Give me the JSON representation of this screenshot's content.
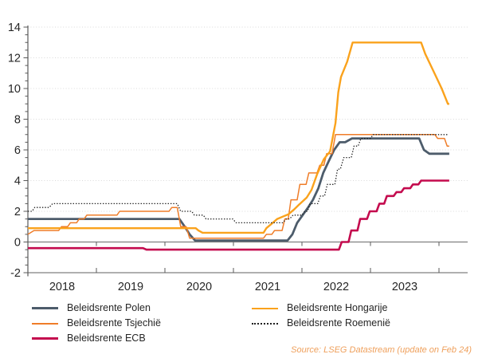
{
  "chart_data": {
    "type": "line",
    "title": "",
    "x_axis": {
      "range": [
        2018,
        2024.42
      ],
      "year_ticks": [
        2019,
        2020,
        2021,
        2022,
        2023,
        2024
      ],
      "labels": [
        "2018",
        "2019",
        "2020",
        "2021",
        "2022",
        "2023"
      ]
    },
    "y_axis": {
      "min": -2,
      "max": 14,
      "label_step": 2,
      "minor_tick_step": 0.5,
      "labels": [
        "-2",
        "0",
        "2",
        "4",
        "6",
        "8",
        "10",
        "12",
        "14"
      ]
    },
    "grid": "horizontal-dotted",
    "zero_line": true,
    "legend": {
      "position": "bottom",
      "columns": [
        [
          "polen",
          "tsjechie",
          "ecb"
        ],
        [
          "hongarije",
          "roemenie"
        ]
      ]
    },
    "style": {
      "grid_color": "#D9D9D9",
      "axis_color": "#595959",
      "zero_line_color": "#808080",
      "text_color": "#262626",
      "source_color": "#EFA05C",
      "background": "#FFFFFF"
    },
    "series": [
      {
        "id": "polen",
        "label": "Beleidsrente Polen",
        "color": "#4D5C6B",
        "width": 2.8,
        "dash": "solid",
        "points": [
          [
            2018.0,
            1.5
          ],
          [
            2020.21,
            1.5
          ],
          [
            2020.29,
            1.0
          ],
          [
            2020.36,
            0.5
          ],
          [
            2020.44,
            0.1
          ],
          [
            2021.79,
            0.1
          ],
          [
            2021.86,
            0.5
          ],
          [
            2021.93,
            1.25
          ],
          [
            2022.01,
            1.75
          ],
          [
            2022.09,
            2.25
          ],
          [
            2022.16,
            2.75
          ],
          [
            2022.24,
            3.5
          ],
          [
            2022.31,
            4.5
          ],
          [
            2022.39,
            5.25
          ],
          [
            2022.47,
            6.0
          ],
          [
            2022.55,
            6.5
          ],
          [
            2022.63,
            6.5
          ],
          [
            2022.73,
            6.75
          ],
          [
            2023.71,
            6.75
          ],
          [
            2023.78,
            6.0
          ],
          [
            2023.86,
            5.75
          ],
          [
            2024.15,
            5.75
          ]
        ]
      },
      {
        "id": "tsjechie",
        "label": "Beleidsrente Tsjechië",
        "color": "#EF7D29",
        "width": 1.5,
        "dash": "solid",
        "points": [
          [
            2018.0,
            0.5
          ],
          [
            2018.09,
            0.75
          ],
          [
            2018.45,
            0.75
          ],
          [
            2018.49,
            1.0
          ],
          [
            2018.58,
            1.0
          ],
          [
            2018.62,
            1.25
          ],
          [
            2018.71,
            1.25
          ],
          [
            2018.75,
            1.5
          ],
          [
            2018.82,
            1.5
          ],
          [
            2018.86,
            1.75
          ],
          [
            2019.3,
            1.75
          ],
          [
            2019.34,
            2.0
          ],
          [
            2020.06,
            2.0
          ],
          [
            2020.1,
            2.25
          ],
          [
            2020.18,
            2.25
          ],
          [
            2020.23,
            1.0
          ],
          [
            2020.31,
            1.0
          ],
          [
            2020.36,
            0.25
          ],
          [
            2021.44,
            0.25
          ],
          [
            2021.48,
            0.5
          ],
          [
            2021.56,
            0.5
          ],
          [
            2021.6,
            0.75
          ],
          [
            2021.71,
            0.75
          ],
          [
            2021.75,
            1.5
          ],
          [
            2021.8,
            1.5
          ],
          [
            2021.84,
            2.75
          ],
          [
            2021.93,
            2.75
          ],
          [
            2021.97,
            3.75
          ],
          [
            2022.06,
            3.75
          ],
          [
            2022.1,
            4.5
          ],
          [
            2022.22,
            4.5
          ],
          [
            2022.26,
            5.0
          ],
          [
            2022.32,
            5.0
          ],
          [
            2022.36,
            5.75
          ],
          [
            2022.44,
            5.75
          ],
          [
            2022.49,
            7.0
          ],
          [
            2023.94,
            7.0
          ],
          [
            2023.98,
            6.75
          ],
          [
            2024.08,
            6.75
          ],
          [
            2024.12,
            6.25
          ],
          [
            2024.15,
            6.25
          ]
        ]
      },
      {
        "id": "ecb",
        "label": "Beleidsrente ECB",
        "color": "#C40B4E",
        "width": 2.6,
        "dash": "solid",
        "points": [
          [
            2018.0,
            -0.4
          ],
          [
            2019.68,
            -0.4
          ],
          [
            2019.73,
            -0.5
          ],
          [
            2022.54,
            -0.5
          ],
          [
            2022.58,
            0.0
          ],
          [
            2022.68,
            0.0
          ],
          [
            2022.72,
            0.75
          ],
          [
            2022.81,
            0.75
          ],
          [
            2022.85,
            1.5
          ],
          [
            2022.95,
            1.5
          ],
          [
            2022.99,
            2.0
          ],
          [
            2023.09,
            2.0
          ],
          [
            2023.13,
            2.5
          ],
          [
            2023.2,
            2.5
          ],
          [
            2023.24,
            3.0
          ],
          [
            2023.34,
            3.0
          ],
          [
            2023.38,
            3.25
          ],
          [
            2023.45,
            3.25
          ],
          [
            2023.49,
            3.5
          ],
          [
            2023.58,
            3.5
          ],
          [
            2023.62,
            3.75
          ],
          [
            2023.7,
            3.75
          ],
          [
            2023.74,
            4.0
          ],
          [
            2024.15,
            4.0
          ]
        ]
      },
      {
        "id": "hongarije",
        "label": "Beleidsrente Hongarije",
        "color": "#FAA21C",
        "width": 2.4,
        "dash": "solid",
        "points": [
          [
            2018.0,
            0.9
          ],
          [
            2020.45,
            0.9
          ],
          [
            2020.49,
            0.75
          ],
          [
            2020.55,
            0.6
          ],
          [
            2021.44,
            0.6
          ],
          [
            2021.48,
            0.9
          ],
          [
            2021.56,
            1.2
          ],
          [
            2021.64,
            1.5
          ],
          [
            2021.72,
            1.65
          ],
          [
            2021.8,
            1.8
          ],
          [
            2021.88,
            2.1
          ],
          [
            2021.95,
            2.4
          ],
          [
            2022.07,
            2.9
          ],
          [
            2022.14,
            3.4
          ],
          [
            2022.22,
            4.4
          ],
          [
            2022.32,
            5.4
          ],
          [
            2022.41,
            5.9
          ],
          [
            2022.49,
            7.75
          ],
          [
            2022.53,
            9.75
          ],
          [
            2022.57,
            10.75
          ],
          [
            2022.66,
            11.75
          ],
          [
            2022.74,
            13.0
          ],
          [
            2023.74,
            13.0
          ],
          [
            2023.8,
            12.25
          ],
          [
            2023.88,
            11.5
          ],
          [
            2023.96,
            10.75
          ],
          [
            2024.04,
            10.0
          ],
          [
            2024.13,
            9.0
          ],
          [
            2024.15,
            9.0
          ]
        ]
      },
      {
        "id": "roemenie",
        "label": "Beleidsrente Roemenië",
        "color": "#202020",
        "width": 1.3,
        "dash": "dotted",
        "points": [
          [
            2018.0,
            2.0
          ],
          [
            2018.06,
            2.0
          ],
          [
            2018.1,
            2.25
          ],
          [
            2018.31,
            2.25
          ],
          [
            2018.36,
            2.5
          ],
          [
            2020.18,
            2.5
          ],
          [
            2020.23,
            2.0
          ],
          [
            2020.39,
            2.0
          ],
          [
            2020.43,
            1.75
          ],
          [
            2020.56,
            1.75
          ],
          [
            2020.6,
            1.5
          ],
          [
            2020.99,
            1.5
          ],
          [
            2021.04,
            1.25
          ],
          [
            2021.72,
            1.25
          ],
          [
            2021.77,
            1.5
          ],
          [
            2021.82,
            1.5
          ],
          [
            2021.87,
            1.75
          ],
          [
            2022.0,
            1.75
          ],
          [
            2022.04,
            2.0
          ],
          [
            2022.08,
            2.0
          ],
          [
            2022.12,
            2.5
          ],
          [
            2022.23,
            2.5
          ],
          [
            2022.27,
            3.0
          ],
          [
            2022.33,
            3.0
          ],
          [
            2022.37,
            3.75
          ],
          [
            2022.48,
            3.75
          ],
          [
            2022.52,
            4.75
          ],
          [
            2022.56,
            4.75
          ],
          [
            2022.61,
            5.5
          ],
          [
            2022.72,
            5.5
          ],
          [
            2022.76,
            6.25
          ],
          [
            2022.82,
            6.25
          ],
          [
            2022.86,
            6.75
          ],
          [
            2023.0,
            6.75
          ],
          [
            2023.04,
            7.0
          ],
          [
            2024.14,
            7.0
          ]
        ]
      }
    ],
    "source": "Source: LSEG Datastream (update on Feb 24)"
  }
}
